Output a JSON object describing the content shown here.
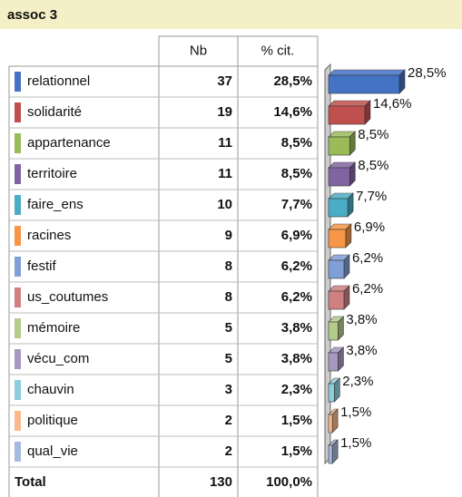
{
  "title": "assoc 3",
  "table": {
    "header": [
      "Nb",
      "% cit."
    ],
    "counts": [
      37,
      19,
      11,
      11,
      10,
      9,
      8,
      8,
      5,
      5,
      3,
      2,
      2
    ],
    "total": {
      "label": "Total",
      "nb": 130,
      "pct": "100,0%"
    }
  },
  "chart_data": {
    "type": "bar",
    "orientation": "horizontal",
    "categories": [
      "relationnel",
      "solidarité",
      "appartenance",
      "territoire",
      "faire_ens",
      "racines",
      "festif",
      "us_coutumes",
      "mémoire",
      "vécu_com",
      "chauvin",
      "politique",
      "qual_vie"
    ],
    "values": [
      28.5,
      14.6,
      8.5,
      8.5,
      7.7,
      6.9,
      6.2,
      6.2,
      3.8,
      3.8,
      2.3,
      1.5,
      1.5
    ],
    "value_labels": [
      "28,5%",
      "14,6%",
      "8,5%",
      "8,5%",
      "7,7%",
      "6,9%",
      "6,2%",
      "6,2%",
      "3,8%",
      "3,8%",
      "2,3%",
      "1,5%",
      "1,5%"
    ],
    "colors": [
      "#4472c4",
      "#c0504d",
      "#9bbb59",
      "#8064a2",
      "#4bacc6",
      "#f79646",
      "#7f9fd6",
      "#d08080",
      "#b3cc8a",
      "#a898c0",
      "#8ccedc",
      "#f9b98a",
      "#a6b9de"
    ],
    "xlim": [
      0,
      28.5
    ]
  }
}
